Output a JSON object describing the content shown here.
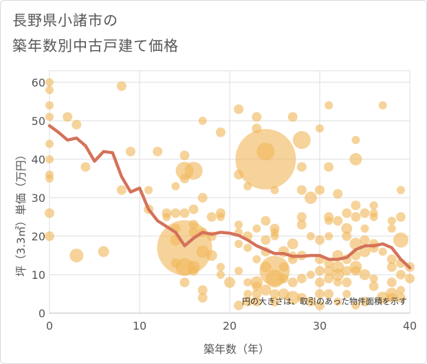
{
  "title_lines": [
    "長野県小諸市の",
    "築年数別中古戸建て価格"
  ],
  "chart_data": {
    "type": "scatter",
    "title": "長野県小諸市の築年数別中古戸建て価格",
    "xlabel": "築年数（年）",
    "ylabel": "坪（3.3㎡）単価（万円）",
    "xlim": [
      0,
      40
    ],
    "ylim": [
      0,
      63
    ],
    "xticks": [
      0,
      10,
      20,
      30,
      40
    ],
    "yticks": [
      0,
      10,
      20,
      30,
      40,
      50,
      60
    ],
    "grid": true,
    "note": "円の大きさは、取引のあった物件面積を示す",
    "colors": {
      "bubble": "#f0b85c",
      "line": "#d4725a",
      "grid": "#dcdcdc"
    },
    "bubbles": [
      {
        "x": 0,
        "y": 60,
        "s": 6
      },
      {
        "x": 0,
        "y": 58,
        "s": 6
      },
      {
        "x": 0,
        "y": 54,
        "s": 6
      },
      {
        "x": 0,
        "y": 51,
        "s": 6
      },
      {
        "x": 0,
        "y": 44,
        "s": 6
      },
      {
        "x": 0,
        "y": 40,
        "s": 6
      },
      {
        "x": 0,
        "y": 36,
        "s": 6
      },
      {
        "x": 0,
        "y": 35,
        "s": 6
      },
      {
        "x": 0,
        "y": 26,
        "s": 7
      },
      {
        "x": 0,
        "y": 20,
        "s": 7
      },
      {
        "x": 2,
        "y": 51,
        "s": 7
      },
      {
        "x": 3,
        "y": 49,
        "s": 7
      },
      {
        "x": 3,
        "y": 15,
        "s": 10
      },
      {
        "x": 4,
        "y": 38,
        "s": 7
      },
      {
        "x": 6,
        "y": 16,
        "s": 8
      },
      {
        "x": 8,
        "y": 59,
        "s": 7
      },
      {
        "x": 8,
        "y": 32,
        "s": 7
      },
      {
        "x": 9,
        "y": 42,
        "s": 7
      },
      {
        "x": 11,
        "y": 32,
        "s": 6
      },
      {
        "x": 11,
        "y": 27,
        "s": 7
      },
      {
        "x": 12,
        "y": 42,
        "s": 7
      },
      {
        "x": 13,
        "y": 26,
        "s": 7
      },
      {
        "x": 13,
        "y": 25,
        "s": 6
      },
      {
        "x": 14,
        "y": 33,
        "s": 6
      },
      {
        "x": 14,
        "y": 26,
        "s": 7
      },
      {
        "x": 14,
        "y": 22,
        "s": 7
      },
      {
        "x": 14,
        "y": 19,
        "s": 8
      },
      {
        "x": 14,
        "y": 13,
        "s": 7
      },
      {
        "x": 15,
        "y": 41,
        "s": 7
      },
      {
        "x": 15,
        "y": 37,
        "s": 13
      },
      {
        "x": 15,
        "y": 35,
        "s": 7
      },
      {
        "x": 15,
        "y": 26,
        "s": 7
      },
      {
        "x": 15,
        "y": 17,
        "s": 40
      },
      {
        "x": 15,
        "y": 12,
        "s": 13
      },
      {
        "x": 15,
        "y": 8,
        "s": 7
      },
      {
        "x": 16,
        "y": 37,
        "s": 13
      },
      {
        "x": 16,
        "y": 27,
        "s": 7
      },
      {
        "x": 16,
        "y": 23,
        "s": 7
      },
      {
        "x": 16,
        "y": 21,
        "s": 7
      },
      {
        "x": 16,
        "y": 12,
        "s": 9
      },
      {
        "x": 16,
        "y": 11,
        "s": 7
      },
      {
        "x": 17,
        "y": 50,
        "s": 6
      },
      {
        "x": 17,
        "y": 30,
        "s": 7
      },
      {
        "x": 17,
        "y": 21,
        "s": 7
      },
      {
        "x": 17,
        "y": 16,
        "s": 9
      },
      {
        "x": 17,
        "y": 6,
        "s": 7
      },
      {
        "x": 17,
        "y": 4,
        "s": 7
      },
      {
        "x": 18,
        "y": 25,
        "s": 7
      },
      {
        "x": 18,
        "y": 20,
        "s": 7
      },
      {
        "x": 18,
        "y": 15,
        "s": 8
      },
      {
        "x": 19,
        "y": 47,
        "s": 7
      },
      {
        "x": 19,
        "y": 26,
        "s": 7
      },
      {
        "x": 19,
        "y": 25,
        "s": 6
      },
      {
        "x": 19,
        "y": 12,
        "s": 6
      },
      {
        "x": 19,
        "y": 10,
        "s": 6
      },
      {
        "x": 20,
        "y": 8,
        "s": 8
      },
      {
        "x": 21,
        "y": 53,
        "s": 7
      },
      {
        "x": 21,
        "y": 36,
        "s": 7
      },
      {
        "x": 21,
        "y": 23,
        "s": 6
      },
      {
        "x": 21,
        "y": 21,
        "s": 6
      },
      {
        "x": 21,
        "y": 18,
        "s": 6
      },
      {
        "x": 21,
        "y": 11,
        "s": 6
      },
      {
        "x": 21,
        "y": 2,
        "s": 7
      },
      {
        "x": 22,
        "y": 33,
        "s": 6
      },
      {
        "x": 22,
        "y": 20,
        "s": 7
      },
      {
        "x": 22,
        "y": 17,
        "s": 6
      },
      {
        "x": 22,
        "y": 8,
        "s": 6
      },
      {
        "x": 22,
        "y": 5,
        "s": 6
      },
      {
        "x": 22,
        "y": 3,
        "s": 7
      },
      {
        "x": 23,
        "y": 51,
        "s": 7
      },
      {
        "x": 23,
        "y": 48,
        "s": 7
      },
      {
        "x": 23,
        "y": 22,
        "s": 6
      },
      {
        "x": 23,
        "y": 14,
        "s": 6
      },
      {
        "x": 23,
        "y": 8,
        "s": 9
      },
      {
        "x": 23,
        "y": 7,
        "s": 7
      },
      {
        "x": 23,
        "y": 5,
        "s": 7
      },
      {
        "x": 23,
        "y": 3,
        "s": 7
      },
      {
        "x": 24,
        "y": 40,
        "s": 44
      },
      {
        "x": 24,
        "y": 42,
        "s": 13
      },
      {
        "x": 24,
        "y": 24,
        "s": 7
      },
      {
        "x": 24,
        "y": 19,
        "s": 7
      },
      {
        "x": 24,
        "y": 16,
        "s": 7
      },
      {
        "x": 24,
        "y": 12,
        "s": 8
      },
      {
        "x": 24,
        "y": 6,
        "s": 8
      },
      {
        "x": 25,
        "y": 32,
        "s": 6
      },
      {
        "x": 25,
        "y": 22,
        "s": 7
      },
      {
        "x": 25,
        "y": 21,
        "s": 6
      },
      {
        "x": 25,
        "y": 20,
        "s": 6
      },
      {
        "x": 25,
        "y": 11,
        "s": 22
      },
      {
        "x": 25,
        "y": 9,
        "s": 13
      },
      {
        "x": 25,
        "y": 5,
        "s": 7
      },
      {
        "x": 25,
        "y": 3,
        "s": 7
      },
      {
        "x": 26,
        "y": 16,
        "s": 8
      },
      {
        "x": 26,
        "y": 12,
        "s": 7
      },
      {
        "x": 26,
        "y": 9,
        "s": 7
      },
      {
        "x": 26,
        "y": 5,
        "s": 8
      },
      {
        "x": 27,
        "y": 51,
        "s": 7
      },
      {
        "x": 27,
        "y": 18,
        "s": 8
      },
      {
        "x": 27,
        "y": 15,
        "s": 6
      },
      {
        "x": 27,
        "y": 14,
        "s": 7
      },
      {
        "x": 27,
        "y": 8,
        "s": 7
      },
      {
        "x": 27,
        "y": 4,
        "s": 10
      },
      {
        "x": 28,
        "y": 45,
        "s": 13
      },
      {
        "x": 28,
        "y": 38,
        "s": 7
      },
      {
        "x": 28,
        "y": 32,
        "s": 7
      },
      {
        "x": 28,
        "y": 25,
        "s": 7
      },
      {
        "x": 28,
        "y": 23,
        "s": 7
      },
      {
        "x": 28,
        "y": 15,
        "s": 7
      },
      {
        "x": 28,
        "y": 9,
        "s": 7
      },
      {
        "x": 28,
        "y": 4,
        "s": 7
      },
      {
        "x": 29,
        "y": 30,
        "s": 9
      },
      {
        "x": 29,
        "y": 20,
        "s": 6
      },
      {
        "x": 29,
        "y": 10,
        "s": 6
      },
      {
        "x": 29,
        "y": 3,
        "s": 7
      },
      {
        "x": 30,
        "y": 48,
        "s": 6
      },
      {
        "x": 30,
        "y": 32,
        "s": 7
      },
      {
        "x": 30,
        "y": 19,
        "s": 7
      },
      {
        "x": 30,
        "y": 14,
        "s": 7
      },
      {
        "x": 30,
        "y": 11,
        "s": 7
      },
      {
        "x": 30,
        "y": 8,
        "s": 7
      },
      {
        "x": 30,
        "y": 5,
        "s": 7
      },
      {
        "x": 30,
        "y": 2,
        "s": 7
      },
      {
        "x": 31,
        "y": 54,
        "s": 6
      },
      {
        "x": 31,
        "y": 38,
        "s": 7
      },
      {
        "x": 31,
        "y": 25,
        "s": 7
      },
      {
        "x": 31,
        "y": 24,
        "s": 6
      },
      {
        "x": 31,
        "y": 20,
        "s": 6
      },
      {
        "x": 31,
        "y": 13,
        "s": 7
      },
      {
        "x": 31,
        "y": 11,
        "s": 7
      },
      {
        "x": 31,
        "y": 9,
        "s": 7
      },
      {
        "x": 31,
        "y": 5,
        "s": 7
      },
      {
        "x": 32,
        "y": 31,
        "s": 7
      },
      {
        "x": 32,
        "y": 24,
        "s": 7
      },
      {
        "x": 32,
        "y": 15,
        "s": 8
      },
      {
        "x": 32,
        "y": 12,
        "s": 9
      },
      {
        "x": 32,
        "y": 10,
        "s": 9
      },
      {
        "x": 32,
        "y": 8,
        "s": 6
      },
      {
        "x": 32,
        "y": 3,
        "s": 6
      },
      {
        "x": 33,
        "y": 26,
        "s": 7
      },
      {
        "x": 33,
        "y": 22,
        "s": 8
      },
      {
        "x": 33,
        "y": 20,
        "s": 7
      },
      {
        "x": 33,
        "y": 14,
        "s": 7
      },
      {
        "x": 33,
        "y": 11,
        "s": 7
      },
      {
        "x": 33,
        "y": 8,
        "s": 7
      },
      {
        "x": 33,
        "y": 5,
        "s": 6
      },
      {
        "x": 34,
        "y": 45,
        "s": 6
      },
      {
        "x": 34,
        "y": 40,
        "s": 9
      },
      {
        "x": 34,
        "y": 28,
        "s": 7
      },
      {
        "x": 34,
        "y": 25,
        "s": 7
      },
      {
        "x": 34,
        "y": 18,
        "s": 9
      },
      {
        "x": 34,
        "y": 15,
        "s": 7
      },
      {
        "x": 34,
        "y": 12,
        "s": 9
      },
      {
        "x": 34,
        "y": 11,
        "s": 7
      },
      {
        "x": 34,
        "y": 2,
        "s": 6
      },
      {
        "x": 35,
        "y": 26,
        "s": 7
      },
      {
        "x": 35,
        "y": 22,
        "s": 6
      },
      {
        "x": 35,
        "y": 19,
        "s": 7
      },
      {
        "x": 35,
        "y": 16,
        "s": 8
      },
      {
        "x": 35,
        "y": 10,
        "s": 8
      },
      {
        "x": 35,
        "y": 3,
        "s": 7
      },
      {
        "x": 36,
        "y": 28,
        "s": 6
      },
      {
        "x": 36,
        "y": 26,
        "s": 6
      },
      {
        "x": 36,
        "y": 25,
        "s": 6
      },
      {
        "x": 36,
        "y": 18,
        "s": 7
      },
      {
        "x": 36,
        "y": 17,
        "s": 7
      },
      {
        "x": 36,
        "y": 9,
        "s": 6
      },
      {
        "x": 36,
        "y": 7,
        "s": 7
      },
      {
        "x": 37,
        "y": 54,
        "s": 6
      },
      {
        "x": 37,
        "y": 16,
        "s": 6
      },
      {
        "x": 37,
        "y": 4,
        "s": 9
      },
      {
        "x": 38,
        "y": 24,
        "s": 6
      },
      {
        "x": 38,
        "y": 22,
        "s": 6
      },
      {
        "x": 38,
        "y": 14,
        "s": 7
      },
      {
        "x": 38,
        "y": 12,
        "s": 7
      },
      {
        "x": 38,
        "y": 8,
        "s": 7
      },
      {
        "x": 38,
        "y": 5,
        "s": 9
      },
      {
        "x": 38,
        "y": 4,
        "s": 7
      },
      {
        "x": 39,
        "y": 32,
        "s": 6
      },
      {
        "x": 39,
        "y": 25,
        "s": 7
      },
      {
        "x": 39,
        "y": 19,
        "s": 11
      },
      {
        "x": 39,
        "y": 13,
        "s": 7
      },
      {
        "x": 39,
        "y": 10,
        "s": 7
      },
      {
        "x": 39,
        "y": 6,
        "s": 6
      },
      {
        "x": 39,
        "y": 4,
        "s": 7
      },
      {
        "x": 40,
        "y": 12,
        "s": 7
      },
      {
        "x": 40,
        "y": 9,
        "s": 7
      }
    ],
    "trend": {
      "x": [
        0,
        1,
        2,
        3,
        4,
        5,
        6,
        7,
        8,
        9,
        10,
        11,
        12,
        13,
        14,
        15,
        16,
        17,
        18,
        19,
        20,
        21,
        22,
        23,
        24,
        25,
        26,
        27,
        28,
        29,
        30,
        31,
        32,
        33,
        34,
        35,
        36,
        37,
        38,
        39,
        40
      ],
      "y": [
        48.7,
        47,
        45,
        45.5,
        43.5,
        39.5,
        42,
        41.7,
        35.5,
        31.5,
        32.5,
        27,
        24,
        22.5,
        21,
        17.5,
        19.5,
        21,
        20.5,
        21,
        20.8,
        20.2,
        19,
        17.5,
        16.5,
        15.5,
        15.5,
        14.8,
        14.8,
        15,
        15,
        14,
        14,
        14.5,
        16.5,
        17.5,
        17.5,
        18,
        17,
        14,
        11.8
      ]
    }
  }
}
